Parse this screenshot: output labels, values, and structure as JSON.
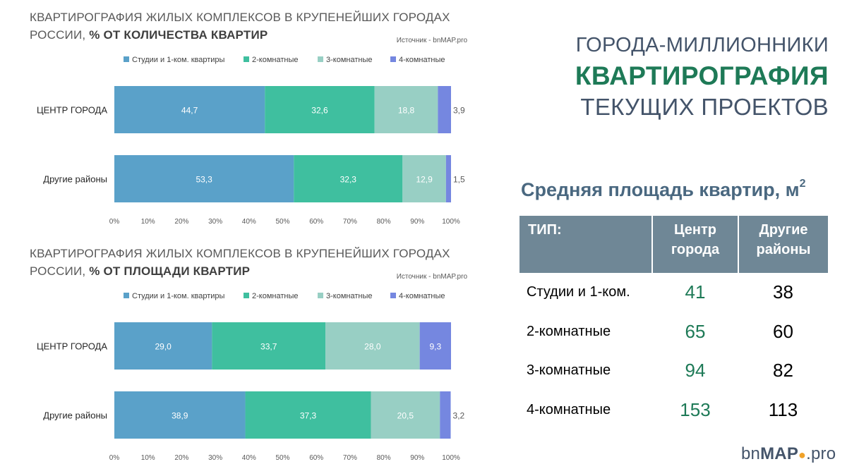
{
  "colors": {
    "studio": "#5aa1c9",
    "two_room": "#3fbf9f",
    "three_room": "#98cfc4",
    "four_room": "#7587e0",
    "headline_accent": "#1e7a57",
    "headline_text": "#44546a",
    "table_header_bg": "#6f8796"
  },
  "headline": {
    "line1": "ГОРОДА-МИЛЛИОННИКИ",
    "line2": "КВАРТИРОГРАФИЯ",
    "line3": "ТЕКУЩИХ ПРОЕКТОВ"
  },
  "chart_data": [
    {
      "type": "bar",
      "orientation": "horizontal",
      "stacked": true,
      "title_prefix": "КВАРТИРОГРАФИЯ ЖИЛЫХ КОМПЛЕКСОВ В КРУПЕНЕЙШИХ ГОРОДАХ РОССИИ, ",
      "title_bold": "% ОТ КОЛИЧЕСТВА КВАРТИР",
      "source": "Источник - bnMAP.pro",
      "legend_position": "top",
      "categories": [
        "ЦЕНТР ГОРОДА",
        "Другие районы"
      ],
      "series": [
        {
          "name": "Студии и 1-ком. квартиры",
          "values": [
            44.7,
            53.3
          ],
          "labels": [
            "44,7",
            "53,3"
          ]
        },
        {
          "name": "2-комнатные",
          "values": [
            32.6,
            32.3
          ],
          "labels": [
            "32,6",
            "32,3"
          ]
        },
        {
          "name": "3-комнатные",
          "values": [
            18.8,
            12.9
          ],
          "labels": [
            "18,8",
            "12,9"
          ]
        },
        {
          "name": "4-комнатные",
          "values": [
            3.9,
            1.5
          ],
          "labels": [
            "3,9",
            "1,5"
          ]
        }
      ],
      "xlim": [
        0,
        100
      ],
      "xticks": [
        "0%",
        "10%",
        "20%",
        "30%",
        "40%",
        "50%",
        "60%",
        "70%",
        "80%",
        "90%",
        "100%"
      ],
      "grid": false
    },
    {
      "type": "bar",
      "orientation": "horizontal",
      "stacked": true,
      "title_prefix": "КВАРТИРОГРАФИЯ ЖИЛЫХ КОМПЛЕКСОВ В КРУПЕНЕЙШИХ ГОРОДАХ РОССИИ, ",
      "title_bold": "% ОТ ПЛОЩАДИ КВАРТИР",
      "source": "Источник - bnMAP.pro",
      "legend_position": "top",
      "categories": [
        "ЦЕНТР ГОРОДА",
        "Другие районы"
      ],
      "series": [
        {
          "name": "Студии и 1-ком. квартиры",
          "values": [
            29.0,
            38.9
          ],
          "labels": [
            "29,0",
            "38,9"
          ]
        },
        {
          "name": "2-комнатные",
          "values": [
            33.7,
            37.3
          ],
          "labels": [
            "33,7",
            "37,3"
          ]
        },
        {
          "name": "3-комнатные",
          "values": [
            28.0,
            20.5
          ],
          "labels": [
            "28,0",
            "20,5"
          ]
        },
        {
          "name": "4-комнатные",
          "values": [
            9.3,
            3.2
          ],
          "labels": [
            "9,3",
            "3,2"
          ]
        }
      ],
      "xlim": [
        0,
        100
      ],
      "xticks": [
        "0%",
        "10%",
        "20%",
        "30%",
        "40%",
        "50%",
        "60%",
        "70%",
        "80%",
        "90%",
        "100%"
      ],
      "grid": false
    }
  ],
  "area_table": {
    "title": "Средняя площадь квартир, м",
    "title_sup": "2",
    "headers": [
      "ТИП:",
      "Центр города",
      "Другие районы"
    ],
    "rows": [
      {
        "type": "Студии и 1-ком.",
        "center": "41",
        "other": "38"
      },
      {
        "type": "2-комнатные",
        "center": "65",
        "other": "60"
      },
      {
        "type": "3-комнатные",
        "center": "94",
        "other": "82"
      },
      {
        "type": "4-комнатные",
        "center": "153",
        "other": "113"
      }
    ]
  },
  "logo": {
    "part1": "bn",
    "part2": "MAP",
    "part3": ".pro"
  }
}
